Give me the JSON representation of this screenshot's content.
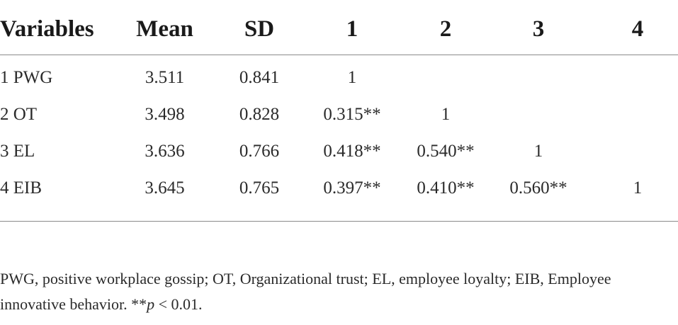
{
  "table": {
    "headers": [
      "Variables",
      "Mean",
      "SD",
      "1",
      "2",
      "3",
      "4"
    ],
    "rows": [
      {
        "variable": "1 PWG",
        "mean": "3.511",
        "sd": "0.841",
        "c1": "1",
        "c2": "",
        "c3": "",
        "c4": ""
      },
      {
        "variable": "2 OT",
        "mean": "3.498",
        "sd": "0.828",
        "c1": "0.315**",
        "c2": "1",
        "c3": "",
        "c4": ""
      },
      {
        "variable": "3 EL",
        "mean": "3.636",
        "sd": "0.766",
        "c1": "0.418**",
        "c2": "0.540**",
        "c3": "1",
        "c4": ""
      },
      {
        "variable": "4 EIB",
        "mean": "3.645",
        "sd": "0.765",
        "c1": "0.397**",
        "c2": "0.410**",
        "c3": "0.560**",
        "c4": "1"
      }
    ]
  },
  "footnote": {
    "text_before": "PWG, positive workplace gossip; OT, Organizational trust; EL, employee loyalty; EIB, Employee innovative behavior. **",
    "italic": "p",
    "text_after": " < 0.01."
  }
}
